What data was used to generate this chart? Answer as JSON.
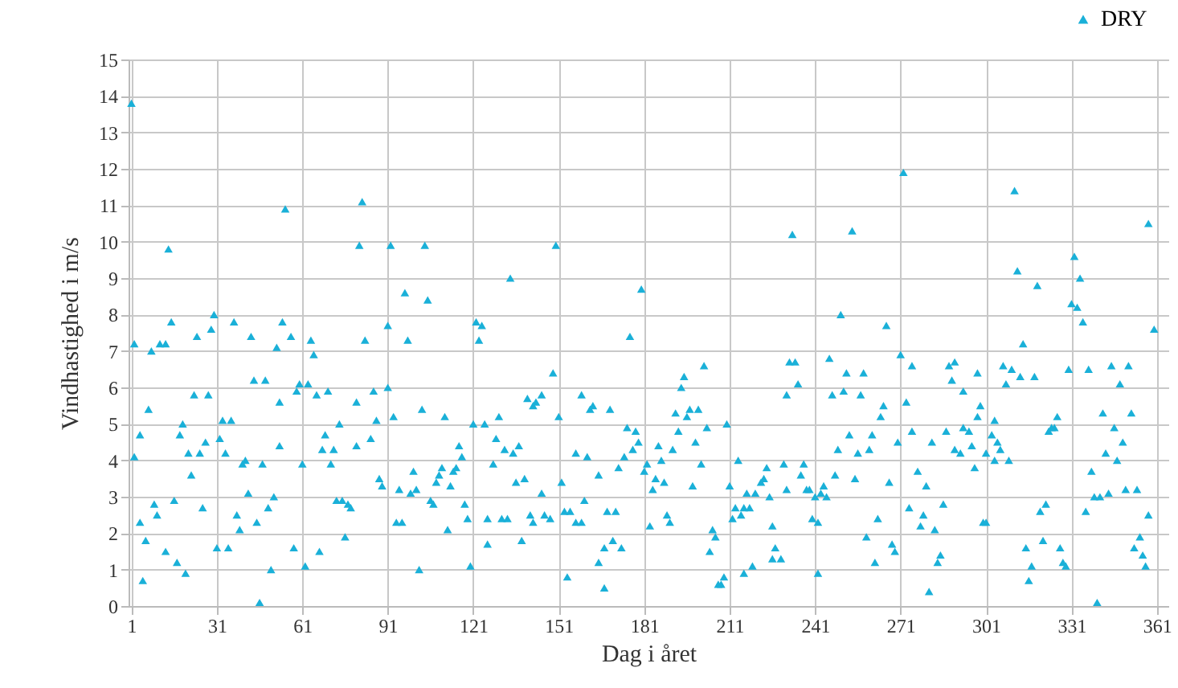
{
  "chart_data": {
    "type": "scatter",
    "xlabel": "Dag i året",
    "ylabel": "Vindhastighed i m/s",
    "x": [
      1,
      55,
      14,
      30,
      15,
      37,
      54,
      24,
      29,
      43,
      57,
      2,
      8,
      11,
      13,
      52,
      44,
      48,
      60,
      59,
      23,
      28,
      7,
      53,
      19,
      4,
      18,
      33,
      36,
      32,
      27,
      21,
      25,
      34,
      53,
      2,
      41,
      40,
      47,
      61,
      22,
      42,
      51,
      9,
      16,
      26,
      10,
      49,
      4,
      38,
      45,
      39,
      6,
      13,
      31,
      35,
      58,
      17,
      20,
      50,
      62,
      5,
      46,
      82,
      81,
      92,
      104,
      97,
      105,
      91,
      64,
      83,
      98,
      65,
      63,
      66,
      70,
      86,
      91,
      80,
      87,
      93,
      103,
      111,
      74,
      69,
      68,
      72,
      80,
      85,
      116,
      117,
      71,
      88,
      89,
      100,
      110,
      109,
      108,
      115,
      114,
      113,
      95,
      99,
      101,
      73,
      75,
      77,
      78,
      106,
      107,
      118,
      119,
      94,
      96,
      112,
      76,
      67,
      102,
      120,
      150,
      134,
      122,
      124,
      123,
      176,
      149,
      140,
      142,
      143,
      145,
      159,
      162,
      163,
      169,
      151,
      121,
      125,
      130,
      175,
      178,
      129,
      132,
      135,
      137,
      157,
      161,
      177,
      179,
      174,
      172,
      165,
      128,
      136,
      139,
      152,
      145,
      160,
      153,
      155,
      168,
      171,
      126,
      131,
      133,
      141,
      142,
      146,
      148,
      157,
      159,
      126,
      138,
      167,
      170,
      173,
      165,
      154,
      167,
      233,
      180,
      202,
      232,
      234,
      195,
      194,
      235,
      231,
      192,
      196,
      197,
      200,
      203,
      210,
      193,
      199,
      186,
      191,
      187,
      182,
      181,
      201,
      214,
      224,
      230,
      237,
      223,
      222,
      236,
      238,
      185,
      188,
      184,
      198,
      211,
      217,
      220,
      225,
      231,
      213,
      216,
      218,
      212,
      215,
      183,
      189,
      190,
      226,
      205,
      206,
      204,
      227,
      226,
      229,
      219,
      216,
      209,
      207,
      208,
      272,
      254,
      250,
      266,
      246,
      271,
      275,
      288,
      290,
      298,
      252,
      258,
      289,
      247,
      251,
      257,
      293,
      265,
      264,
      273,
      299,
      298,
      253,
      261,
      275,
      287,
      293,
      295,
      270,
      282,
      296,
      249,
      256,
      260,
      290,
      292,
      248,
      255,
      267,
      277,
      280,
      297,
      239,
      241,
      243,
      244,
      245,
      274,
      279,
      278,
      283,
      286,
      263,
      240,
      242,
      259,
      268,
      269,
      285,
      284,
      262,
      242,
      281,
      300,
      311,
      358,
      332,
      312,
      334,
      319,
      331,
      333,
      335,
      360,
      314,
      307,
      310,
      308,
      313,
      318,
      330,
      337,
      345,
      351,
      348,
      304,
      326,
      325,
      323,
      324,
      342,
      352,
      346,
      349,
      303,
      305,
      306,
      301,
      304,
      309,
      343,
      347,
      338,
      339,
      341,
      344,
      350,
      354,
      322,
      320,
      336,
      358,
      301,
      315,
      321,
      327,
      355,
      353,
      356,
      357,
      317,
      316,
      328,
      329,
      340
    ],
    "series": [
      {
        "name": "DRY",
        "color": "#1ab0d8",
        "values": [
          13.8,
          10.9,
          9.8,
          8.0,
          7.8,
          7.8,
          7.8,
          7.4,
          7.6,
          7.4,
          7.4,
          7.2,
          7.0,
          7.2,
          7.2,
          7.1,
          6.2,
          6.2,
          6.1,
          5.9,
          5.8,
          5.8,
          5.4,
          5.6,
          5.0,
          4.7,
          4.7,
          5.1,
          5.1,
          4.6,
          4.5,
          4.2,
          4.2,
          4.2,
          4.4,
          4.1,
          4.0,
          3.9,
          3.9,
          3.9,
          3.6,
          3.1,
          3.0,
          2.8,
          2.9,
          2.7,
          2.5,
          2.7,
          2.3,
          2.5,
          2.3,
          2.1,
          1.8,
          1.5,
          1.6,
          1.6,
          1.6,
          1.2,
          0.9,
          1.0,
          1.1,
          0.7,
          0.1,
          11.1,
          9.9,
          9.9,
          9.9,
          8.6,
          8.4,
          7.7,
          7.3,
          7.3,
          7.3,
          6.9,
          6.1,
          5.8,
          5.9,
          5.9,
          6.0,
          5.6,
          5.1,
          5.2,
          5.4,
          5.2,
          5.0,
          4.7,
          4.3,
          4.3,
          4.4,
          4.6,
          4.4,
          4.1,
          3.9,
          3.5,
          3.3,
          3.7,
          3.8,
          3.6,
          3.4,
          3.8,
          3.7,
          3.3,
          3.2,
          3.1,
          3.2,
          2.9,
          2.9,
          2.8,
          2.7,
          2.9,
          2.8,
          2.8,
          2.4,
          2.3,
          2.3,
          2.1,
          1.9,
          1.5,
          1.0,
          1.1,
          9.9,
          9.0,
          7.8,
          7.7,
          7.3,
          7.4,
          6.4,
          5.7,
          5.5,
          5.6,
          5.8,
          5.8,
          5.4,
          5.5,
          5.4,
          5.2,
          5.0,
          5.0,
          5.2,
          4.9,
          4.8,
          4.6,
          4.3,
          4.2,
          4.4,
          4.2,
          4.1,
          4.3,
          4.5,
          4.1,
          3.8,
          3.6,
          3.9,
          3.4,
          3.5,
          3.4,
          3.1,
          2.9,
          2.6,
          2.6,
          2.6,
          2.6,
          2.4,
          2.4,
          2.4,
          2.5,
          2.3,
          2.5,
          2.4,
          2.3,
          2.3,
          1.7,
          1.8,
          1.6,
          1.8,
          1.6,
          1.2,
          0.8,
          0.5,
          10.2,
          8.7,
          6.6,
          6.7,
          6.7,
          6.3,
          6.0,
          6.1,
          5.8,
          5.3,
          5.2,
          5.4,
          5.4,
          4.9,
          5.0,
          4.8,
          4.5,
          4.4,
          4.3,
          4.0,
          3.9,
          3.7,
          3.9,
          4.0,
          3.8,
          3.9,
          3.9,
          3.5,
          3.4,
          3.6,
          3.2,
          3.5,
          3.4,
          3.2,
          3.3,
          3.3,
          3.1,
          3.1,
          3.0,
          3.2,
          2.7,
          2.7,
          2.7,
          2.4,
          2.5,
          2.2,
          2.5,
          2.3,
          2.2,
          2.1,
          1.9,
          1.5,
          1.6,
          1.3,
          1.3,
          1.1,
          0.9,
          0.8,
          0.6,
          0.6,
          11.9,
          10.3,
          8.0,
          7.7,
          6.8,
          6.9,
          6.6,
          6.6,
          6.7,
          6.4,
          6.4,
          6.4,
          6.2,
          5.8,
          5.9,
          5.8,
          5.9,
          5.5,
          5.2,
          5.6,
          5.5,
          5.2,
          4.7,
          4.7,
          4.8,
          4.8,
          4.9,
          4.8,
          4.5,
          4.5,
          4.4,
          4.3,
          4.2,
          4.3,
          4.3,
          4.2,
          3.6,
          3.5,
          3.4,
          3.7,
          3.3,
          3.8,
          3.2,
          3.0,
          3.1,
          3.3,
          3.0,
          2.7,
          2.5,
          2.2,
          2.1,
          2.8,
          2.4,
          2.4,
          2.3,
          1.9,
          1.7,
          1.5,
          1.4,
          1.2,
          1.2,
          0.9,
          0.4,
          2.3,
          11.4,
          10.5,
          9.6,
          9.2,
          9.0,
          8.8,
          8.3,
          8.2,
          7.8,
          7.6,
          7.2,
          6.6,
          6.5,
          6.1,
          6.3,
          6.3,
          6.5,
          6.5,
          6.6,
          6.6,
          6.1,
          5.1,
          5.2,
          4.9,
          4.8,
          4.9,
          5.3,
          5.3,
          4.9,
          4.5,
          4.7,
          4.5,
          4.3,
          4.2,
          4.0,
          4.0,
          4.2,
          4.0,
          3.7,
          3.0,
          3.0,
          3.1,
          3.2,
          3.2,
          2.8,
          2.6,
          2.6,
          2.5,
          2.3,
          1.6,
          1.8,
          1.6,
          1.9,
          1.6,
          1.4,
          1.1,
          1.1,
          0.7,
          1.2,
          1.1,
          0.1
        ]
      }
    ],
    "xlim": [
      0,
      365
    ],
    "xticks": [
      1,
      31,
      61,
      91,
      121,
      151,
      181,
      211,
      241,
      271,
      301,
      331,
      361
    ],
    "ylim": [
      0,
      15
    ],
    "yticks": [
      0,
      1,
      2,
      3,
      4,
      5,
      6,
      7,
      8,
      9,
      10,
      11,
      12,
      13,
      14,
      15
    ],
    "grid": true,
    "legend": "top right",
    "marker": "triangle"
  }
}
